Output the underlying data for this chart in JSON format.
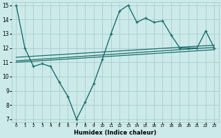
{
  "x": [
    0,
    1,
    2,
    3,
    4,
    5,
    6,
    7,
    8,
    9,
    10,
    11,
    12,
    13,
    14,
    15,
    16,
    17,
    18,
    19,
    20,
    21,
    22,
    23
  ],
  "main_y": [
    15,
    12,
    10.7,
    10.9,
    10.7,
    9.6,
    8.6,
    7.0,
    8.2,
    9.5,
    11.2,
    13.0,
    14.6,
    15.0,
    13.8,
    14.1,
    13.8,
    13.9,
    12.9,
    12.0,
    12.0,
    12.0,
    13.2,
    12.0
  ],
  "trend1_x": [
    0,
    23
  ],
  "trend1_y": [
    11.35,
    12.2
  ],
  "trend2_x": [
    0,
    23
  ],
  "trend2_y": [
    11.1,
    12.05
  ],
  "trend3_x": [
    0,
    23
  ],
  "trend3_y": [
    11.0,
    11.88
  ],
  "bg_color": "#cceaea",
  "grid_color": "#aacccc",
  "line_color": "#1a6e6a",
  "xlabel": "Humidex (Indice chaleur)",
  "xlim": [
    -0.5,
    23.5
  ],
  "ylim": [
    6.8,
    15.2
  ],
  "yticks": [
    7,
    8,
    9,
    10,
    11,
    12,
    13,
    14,
    15
  ],
  "xticks": [
    0,
    1,
    2,
    3,
    4,
    5,
    6,
    7,
    8,
    9,
    10,
    11,
    12,
    13,
    14,
    15,
    16,
    17,
    18,
    19,
    20,
    21,
    22,
    23
  ]
}
